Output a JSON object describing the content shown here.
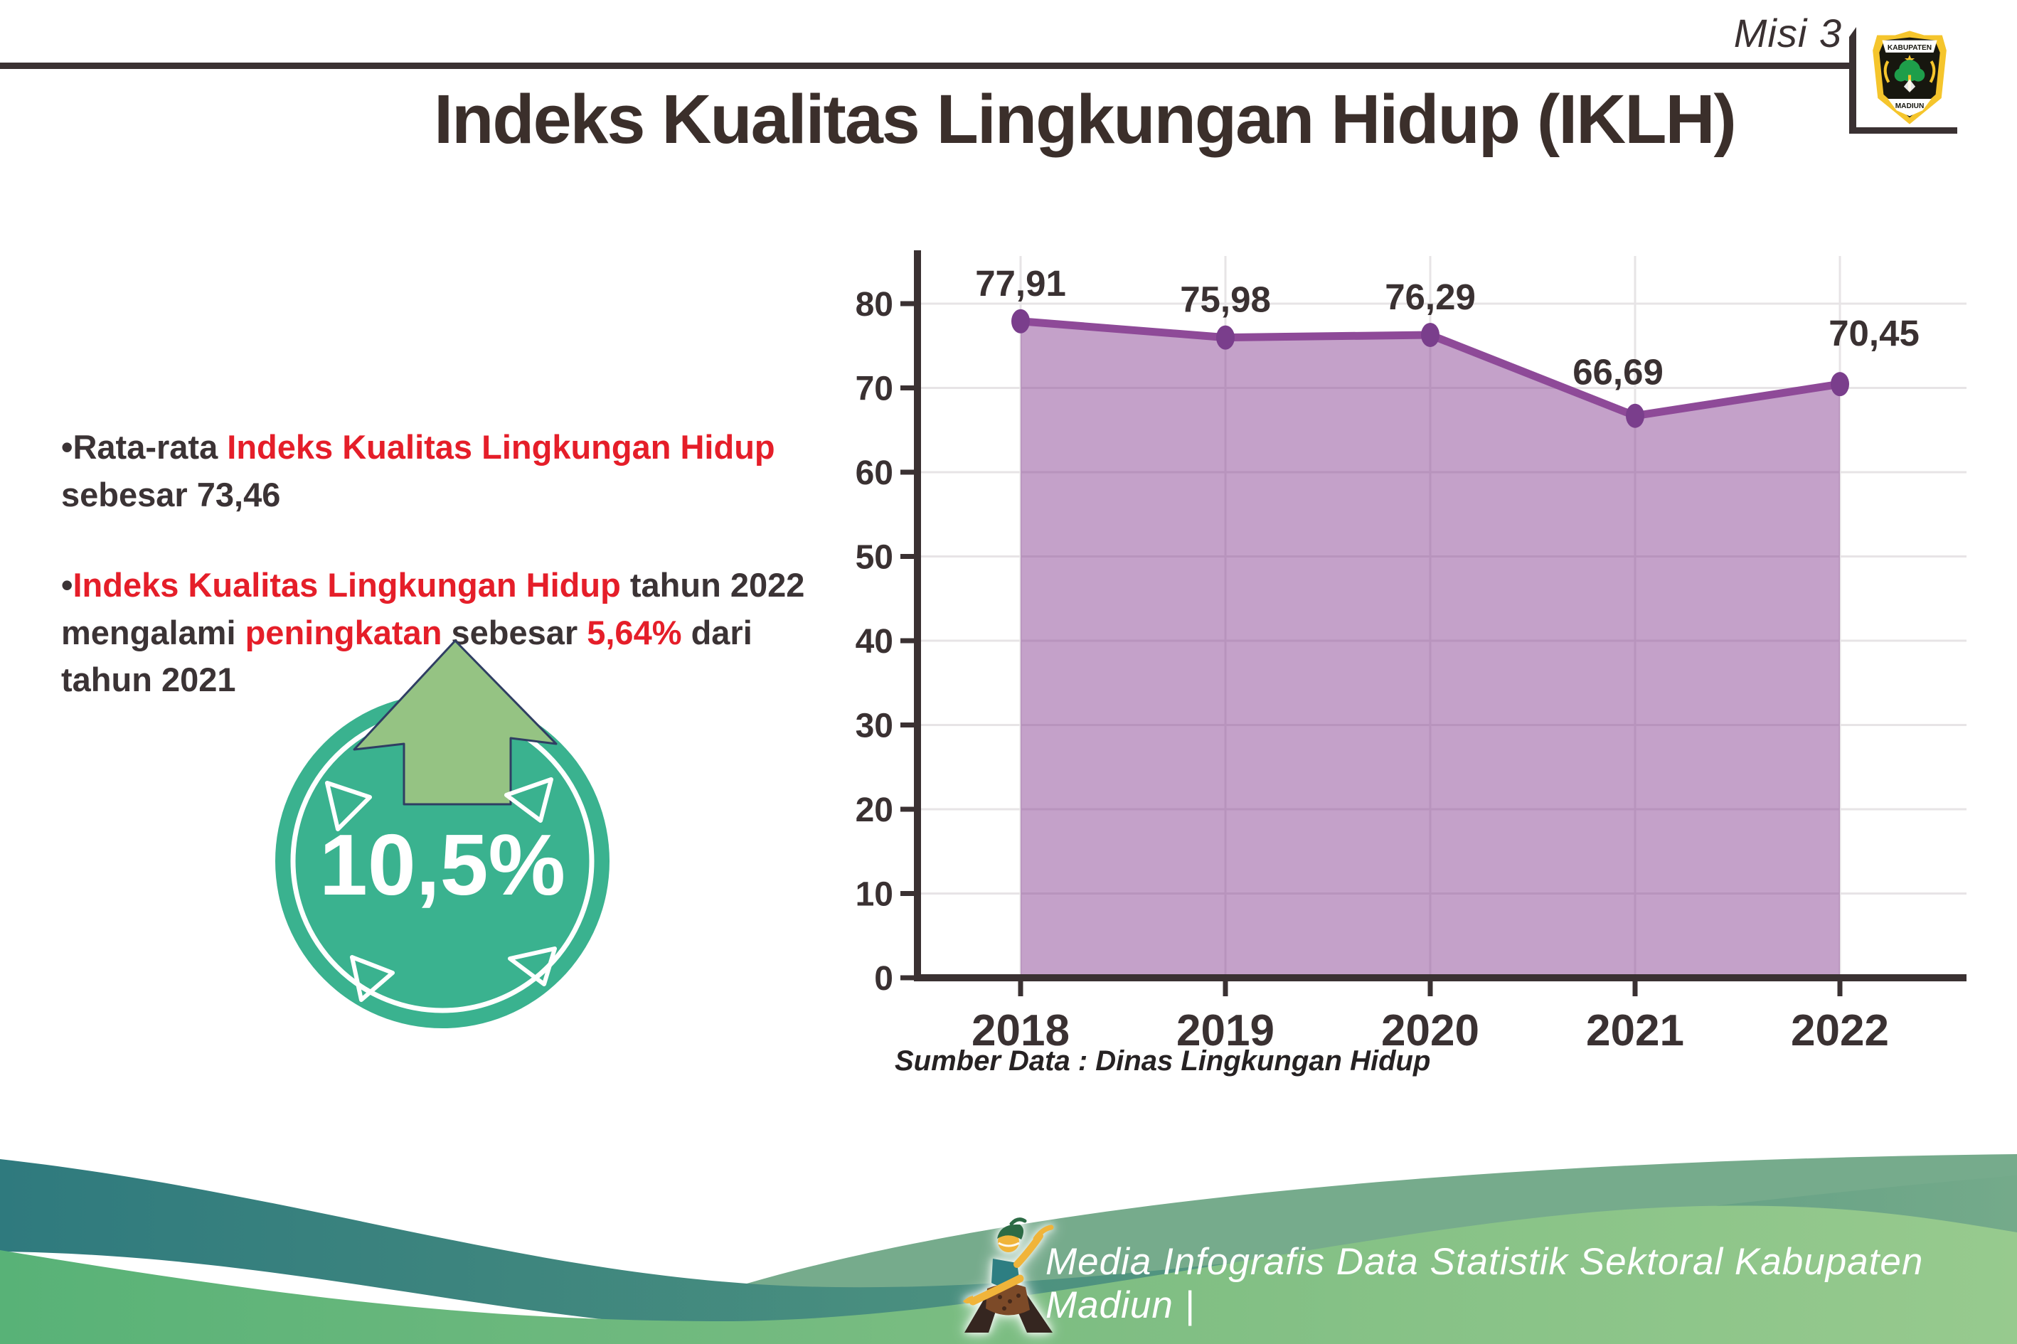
{
  "page": {
    "misi_label": "Misi 3",
    "title": "Indeks Kualitas Lingkungan Hidup (IKLH)",
    "footer_text": "Media Infografis Data Statistik Sektoral Kabupaten Madiun |"
  },
  "logo": {
    "top_text": "KABUPATEN",
    "bottom_text": "MADIUN"
  },
  "bullets": [
    {
      "parts": [
        [
          "d",
          "Rata-rata "
        ],
        [
          "r",
          "Indeks Kualitas Lingkungan Hidup"
        ],
        [
          "d",
          "\nsebesar 73,46"
        ]
      ]
    },
    {
      "parts": [
        [
          "r",
          "Indeks Kualitas Lingkungan Hidup"
        ],
        [
          "d",
          " tahun 2022\nmengalami "
        ],
        [
          "r",
          "peningkatan"
        ],
        [
          "d",
          " sebesar "
        ],
        [
          "r",
          "5,64%"
        ],
        [
          "d",
          " dari\ntahun 2021"
        ]
      ]
    }
  ],
  "badge": {
    "value": "10,5%",
    "circle_color": "#3ab28f",
    "arrow_color": "#95c383",
    "arrow_outline": "#2f3e63"
  },
  "chart_data": {
    "type": "area",
    "title": "",
    "xlabel": "",
    "ylabel": "",
    "categories": [
      "2018",
      "2019",
      "2020",
      "2021",
      "2022"
    ],
    "values": [
      77.91,
      75.98,
      76.29,
      66.69,
      70.45
    ],
    "point_labels": [
      "77,91",
      "75,98",
      "76,29",
      "66,69",
      "70,45"
    ],
    "y_ticks": [
      0,
      10,
      20,
      30,
      40,
      50,
      60,
      70,
      80
    ],
    "ylim": [
      0,
      86
    ],
    "grid": "on",
    "legend": "none",
    "source": "Sumber Data : Dinas Lingkungan Hidup",
    "line_color": "#8e4a98",
    "dot_color": "#7a3e8c",
    "fill_color": "rgba(142,74,152,0.52)",
    "axis_color": "#3a3132",
    "grid_color": "#e7e4e6"
  },
  "colors": {
    "accent_red": "#e51e29",
    "dark_text": "#3b3335",
    "footer_teal": "#2f7a7e",
    "footer_green": "#58b277",
    "footer_green_light": "#97ca8e"
  }
}
